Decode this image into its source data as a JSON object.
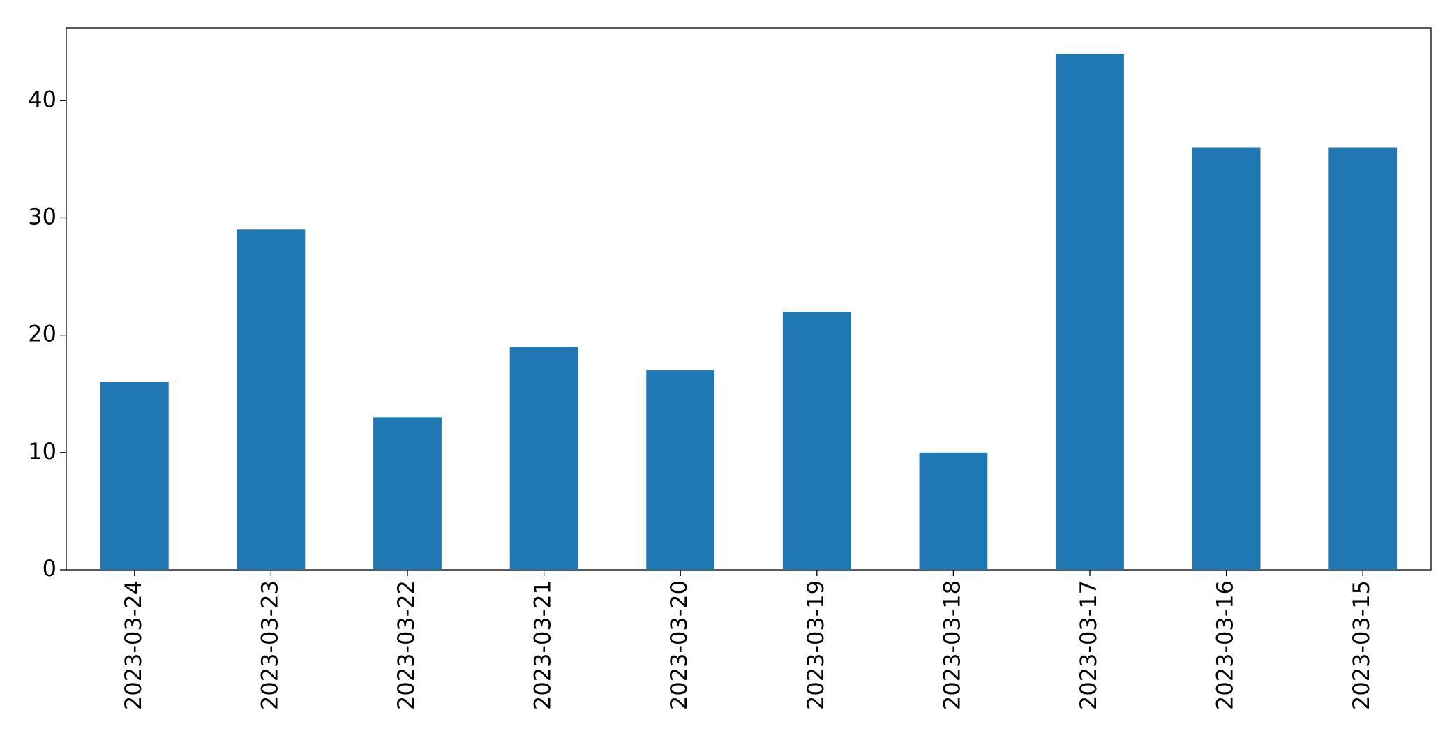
{
  "chart_data": {
    "type": "bar",
    "categories": [
      "2023-03-24",
      "2023-03-23",
      "2023-03-22",
      "2023-03-21",
      "2023-03-20",
      "2023-03-19",
      "2023-03-18",
      "2023-03-17",
      "2023-03-16",
      "2023-03-15"
    ],
    "values": [
      16,
      29,
      13,
      19,
      17,
      22,
      10,
      44,
      36,
      36
    ],
    "color": "#1f77b4",
    "ylim": [
      0,
      46.2
    ],
    "yticks": [
      0,
      10,
      20,
      30,
      40
    ],
    "grid": false
  }
}
